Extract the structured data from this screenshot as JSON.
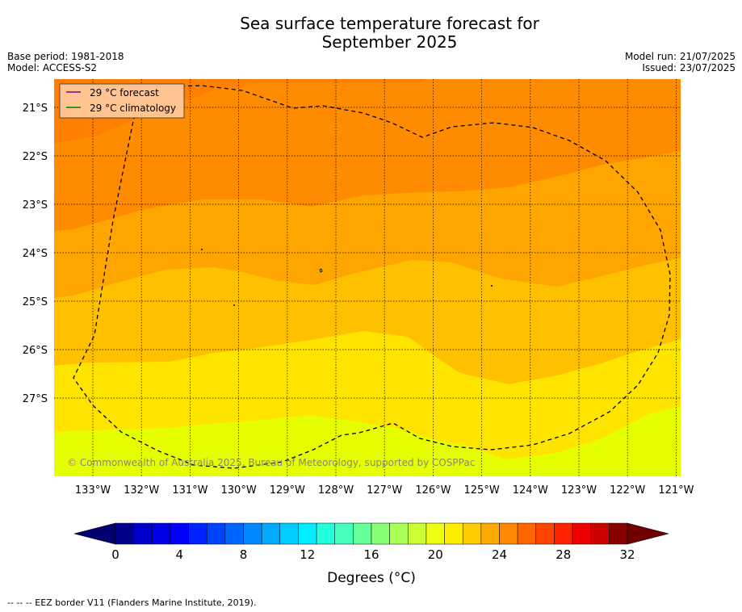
{
  "header": {
    "title_line1": "Sea surface temperature forecast for",
    "title_line2": "September 2025",
    "base_period": "Base period: 1981-2018",
    "model": "Model: ACCESS-S2",
    "model_run": "Model run: 21/07/2025",
    "issued": "Issued: 23/07/2025"
  },
  "map": {
    "lon_labels": [
      "133°W",
      "132°W",
      "131°W",
      "130°W",
      "129°W",
      "128°W",
      "127°W",
      "126°W",
      "125°W",
      "124°W",
      "123°W",
      "122°W",
      "121°W"
    ],
    "lat_labels": [
      "21°S",
      "22°S",
      "23°S",
      "24°S",
      "25°S",
      "26°S",
      "27°S"
    ],
    "legend": [
      {
        "label": "29 °C  forecast",
        "color": "#800080"
      },
      {
        "label": "29 °C  climatology",
        "color": "#008000"
      }
    ],
    "copyright": "© Commonwealth of Australia 2025, Bureau of Meteorology, supported by COSPPac",
    "band_colors": {
      "c26_27": "#ff7f00",
      "c25_26": "#ff8c00",
      "c24_25": "#ffa500",
      "c23_24": "#ffc000",
      "c22_23": "#ffe400",
      "c21_22": "#e6ff00"
    }
  },
  "colorbar": {
    "colors": [
      "#00008b",
      "#0000cd",
      "#0000e6",
      "#0000ff",
      "#0022ff",
      "#0044ff",
      "#0066ff",
      "#0088ff",
      "#00aaff",
      "#00ccff",
      "#00eeff",
      "#22ffdd",
      "#44ffbb",
      "#66ff99",
      "#88ff77",
      "#aaff55",
      "#ccff33",
      "#eeff11",
      "#ffee00",
      "#ffcc00",
      "#ffaa00",
      "#ff8800",
      "#ff6600",
      "#ff4400",
      "#ff2200",
      "#ee0000",
      "#cc0000",
      "#880000"
    ],
    "under_color": "#000070",
    "over_color": "#700000",
    "tick_labels": [
      "0",
      "4",
      "8",
      "12",
      "16",
      "20",
      "24",
      "28",
      "32"
    ],
    "label": "Degrees (°C)"
  },
  "footer": {
    "eez_note": "-- -- -- EEZ border V11 (Flanders Marine Institute, 2019)."
  }
}
